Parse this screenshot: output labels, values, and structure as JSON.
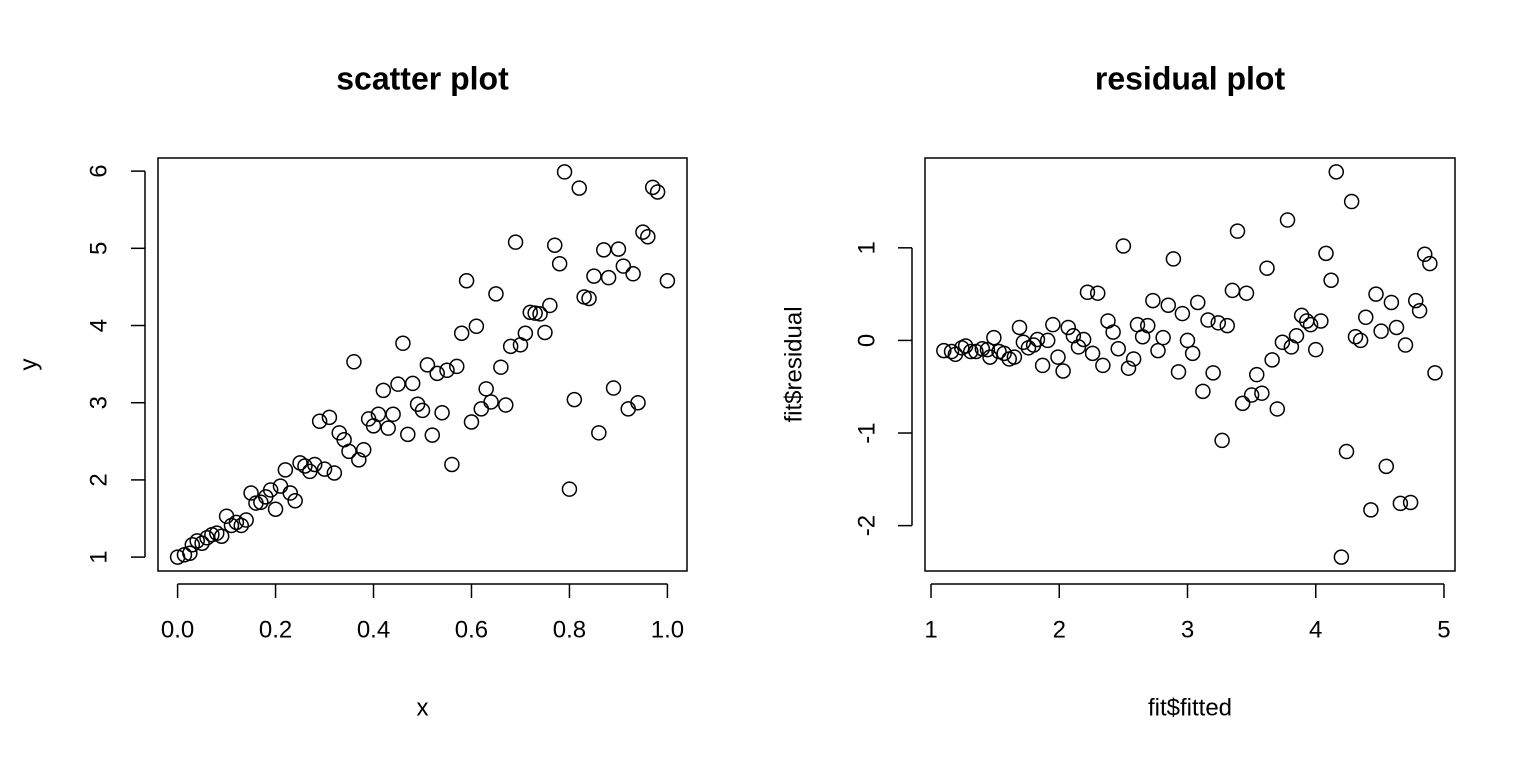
{
  "chart_data": [
    {
      "type": "scatter",
      "title": "scatter plot",
      "x_label": "x",
      "y_label": "y",
      "color": "#000000",
      "x": [
        0.0,
        0.014,
        0.025,
        0.03,
        0.04,
        0.05,
        0.06,
        0.07,
        0.08,
        0.09,
        0.1,
        0.11,
        0.12,
        0.13,
        0.14,
        0.15,
        0.16,
        0.17,
        0.18,
        0.19,
        0.2,
        0.21,
        0.22,
        0.23,
        0.24,
        0.25,
        0.26,
        0.27,
        0.28,
        0.29,
        0.3,
        0.31,
        0.32,
        0.33,
        0.34,
        0.35,
        0.36,
        0.37,
        0.38,
        0.39,
        0.4,
        0.41,
        0.42,
        0.43,
        0.44,
        0.45,
        0.46,
        0.47,
        0.48,
        0.49,
        0.5,
        0.51,
        0.52,
        0.53,
        0.54,
        0.55,
        0.56,
        0.57,
        0.58,
        0.59,
        0.6,
        0.61,
        0.62,
        0.63,
        0.64,
        0.65,
        0.66,
        0.67,
        0.68,
        0.69,
        0.7,
        0.71,
        0.72,
        0.73,
        0.74,
        0.75,
        0.76,
        0.77,
        0.78,
        0.79,
        0.8,
        0.81,
        0.82,
        0.83,
        0.84,
        0.85,
        0.86,
        0.87,
        0.88,
        0.89,
        0.9,
        0.91,
        0.92,
        0.93,
        0.94,
        0.95,
        0.96,
        0.97,
        0.98,
        1.0
      ],
      "values": [
        1.0,
        1.03,
        1.05,
        1.16,
        1.21,
        1.18,
        1.25,
        1.29,
        1.31,
        1.27,
        1.53,
        1.41,
        1.45,
        1.41,
        1.48,
        1.83,
        1.7,
        1.71,
        1.78,
        1.87,
        1.62,
        1.92,
        2.13,
        1.83,
        1.73,
        2.22,
        2.18,
        2.11,
        2.2,
        2.76,
        2.14,
        2.81,
        2.09,
        2.61,
        2.52,
        2.37,
        3.53,
        2.26,
        2.39,
        2.79,
        2.7,
        2.85,
        3.16,
        2.67,
        2.85,
        3.24,
        3.77,
        2.59,
        3.25,
        2.98,
        2.9,
        3.49,
        2.58,
        3.38,
        2.87,
        3.42,
        2.2,
        3.47,
        3.9,
        4.58,
        2.75,
        3.99,
        2.92,
        3.18,
        3.01,
        4.41,
        3.46,
        2.97,
        3.73,
        5.08,
        3.75,
        3.9,
        4.17,
        4.16,
        4.15,
        3.91,
        4.26,
        5.04,
        4.8,
        5.99,
        1.88,
        3.04,
        5.78,
        4.37,
        4.35,
        4.64,
        2.61,
        4.98,
        4.62,
        3.19,
        4.99,
        4.77,
        2.92,
        4.67,
        3.0,
        5.21,
        5.15,
        5.79,
        5.73,
        4.58
      ],
      "xlim": [
        -0.04,
        1.04
      ],
      "ylim": [
        0.82,
        6.17
      ],
      "xticks": [
        {
          "value": 0,
          "label": "0.0"
        },
        0.2,
        0.4,
        0.6,
        0.8,
        {
          "value": 1,
          "label": "1.0"
        }
      ],
      "yticks": [
        1,
        2,
        3,
        4,
        5,
        6
      ]
    },
    {
      "type": "scatter",
      "title": "residual plot",
      "x_label": "fit$fitted",
      "y_label": "fit$residual",
      "color": "#000000",
      "x": [
        1.1,
        1.16,
        1.19,
        1.24,
        1.27,
        1.31,
        1.35,
        1.4,
        1.44,
        1.46,
        1.49,
        1.53,
        1.57,
        1.61,
        1.65,
        1.69,
        1.72,
        1.76,
        1.8,
        1.83,
        1.87,
        1.91,
        1.95,
        1.99,
        2.03,
        2.07,
        2.11,
        2.15,
        2.19,
        2.22,
        2.26,
        2.3,
        2.34,
        2.38,
        2.42,
        2.46,
        2.5,
        2.54,
        2.58,
        2.61,
        2.65,
        2.69,
        2.73,
        2.77,
        2.81,
        2.85,
        2.89,
        2.93,
        2.96,
        3.0,
        3.04,
        3.08,
        3.12,
        3.16,
        3.2,
        3.24,
        3.27,
        3.31,
        3.35,
        3.39,
        3.43,
        3.46,
        3.5,
        3.54,
        3.58,
        3.62,
        3.66,
        3.7,
        3.74,
        3.78,
        3.81,
        3.85,
        3.89,
        3.93,
        3.96,
        4.0,
        4.04,
        4.08,
        4.12,
        4.16,
        4.2,
        4.24,
        4.28,
        4.31,
        4.35,
        4.39,
        4.43,
        4.47,
        4.51,
        4.55,
        4.59,
        4.63,
        4.66,
        4.7,
        4.74,
        4.78,
        4.81,
        4.85,
        4.89,
        4.93
      ],
      "values": [
        -0.11,
        -0.12,
        -0.15,
        -0.08,
        -0.06,
        -0.12,
        -0.12,
        -0.09,
        -0.1,
        -0.18,
        0.03,
        -0.12,
        -0.14,
        -0.2,
        -0.18,
        0.14,
        -0.02,
        -0.08,
        -0.05,
        0.01,
        -0.27,
        0.0,
        0.17,
        -0.18,
        -0.33,
        0.14,
        0.05,
        -0.07,
        0.01,
        0.52,
        -0.14,
        0.51,
        -0.27,
        0.21,
        0.09,
        -0.09,
        1.02,
        -0.3,
        -0.2,
        0.17,
        0.04,
        0.16,
        0.43,
        -0.11,
        0.03,
        0.38,
        0.88,
        -0.34,
        0.29,
        0.0,
        -0.14,
        0.41,
        -0.55,
        0.22,
        -0.35,
        0.19,
        -1.08,
        0.16,
        0.54,
        1.18,
        -0.68,
        0.51,
        -0.59,
        -0.37,
        -0.57,
        0.78,
        -0.21,
        -0.74,
        -0.02,
        1.3,
        -0.07,
        0.05,
        0.27,
        0.21,
        0.17,
        -0.1,
        0.21,
        0.94,
        0.65,
        1.82,
        -2.34,
        -1.2,
        1.5,
        0.04,
        0.0,
        0.25,
        -1.83,
        0.5,
        0.1,
        -1.36,
        0.41,
        0.14,
        -1.76,
        -0.05,
        -1.75,
        0.43,
        0.32,
        0.93,
        0.83,
        -0.35
      ],
      "xlim": [
        0.953,
        5.086
      ],
      "ylim": [
        -2.49,
        1.97
      ],
      "xticks": [
        1,
        2,
        3,
        4,
        5
      ],
      "yticks": [
        -2,
        -1,
        0,
        1
      ]
    }
  ]
}
